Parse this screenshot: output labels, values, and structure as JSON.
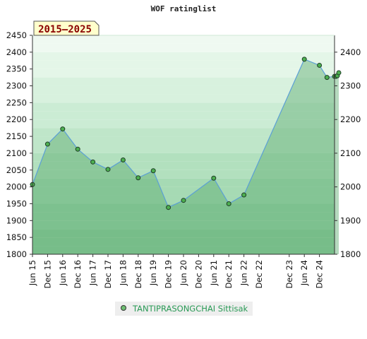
{
  "chart_data": {
    "type": "area",
    "title": "WOF ratinglist",
    "badge": "2015—2025",
    "ylim": [
      1800,
      2450
    ],
    "y_ticks_left": [
      1800,
      1850,
      1900,
      1950,
      2000,
      2050,
      2100,
      2150,
      2200,
      2250,
      2300,
      2350,
      2400,
      2450
    ],
    "y_ticks_right": [
      1800,
      1900,
      2000,
      2100,
      2200,
      2300,
      2400
    ],
    "x_tick_labels": [
      "Jun 15",
      "Dec 15",
      "Jun 16",
      "Dec 16",
      "Jun 17",
      "Dec 17",
      "Jun 18",
      "Dec 18",
      "Jun 19",
      "Dec 19",
      "Jun 20",
      "Dec 20",
      "Jun 21",
      "Dec 21",
      "Jun 22",
      "Dec 22",
      "Dec 23",
      "Jun 24",
      "Dec 24"
    ],
    "series": [
      {
        "name": "TANTIPRASONGCHAI Sittisak",
        "color": "#5aaa6e",
        "line_color": "#5b9fd6",
        "values": [
          2007,
          2127,
          2172,
          2112,
          2074,
          2052,
          2080,
          2027,
          2048,
          1939,
          1960,
          2026,
          1950,
          1976,
          2379,
          2361,
          2325,
          2328,
          2328,
          2330,
          2339
        ]
      }
    ],
    "legend": "bottom",
    "grid": true
  }
}
